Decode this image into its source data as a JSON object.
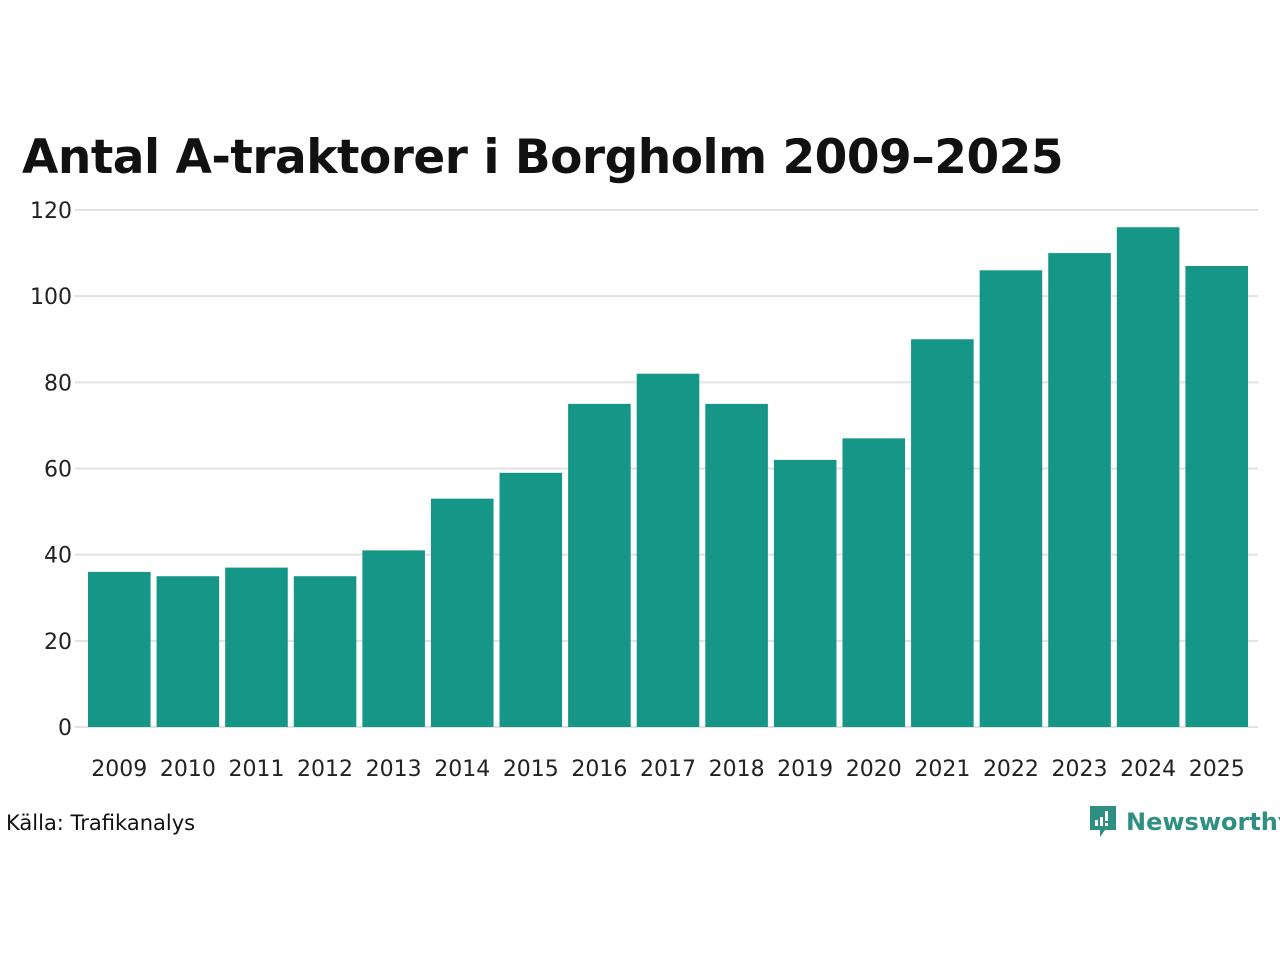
{
  "chart_data": {
    "type": "bar",
    "title": "Antal A-traktorer i Borgholm 2009–2025",
    "xlabel": "",
    "ylabel": "",
    "categories": [
      "2009",
      "2010",
      "2011",
      "2012",
      "2013",
      "2014",
      "2015",
      "2016",
      "2017",
      "2018",
      "2019",
      "2020",
      "2021",
      "2022",
      "2023",
      "2024",
      "2025"
    ],
    "values": [
      36,
      35,
      37,
      35,
      41,
      53,
      59,
      75,
      82,
      75,
      62,
      67,
      90,
      106,
      110,
      116,
      107
    ],
    "ylim": [
      0,
      120
    ],
    "yticks": [
      0,
      20,
      40,
      60,
      80,
      100,
      120
    ],
    "grid": true,
    "bar_color": "#159687"
  },
  "source": "Källa: Trafikanalys",
  "logo": {
    "text": "Newsworthy",
    "color": "#2f8f80"
  }
}
